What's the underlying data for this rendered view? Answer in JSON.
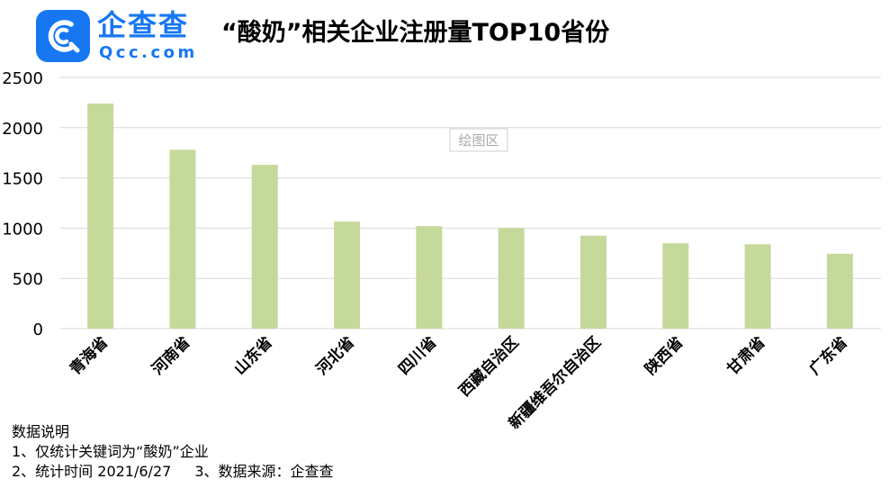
{
  "brand": {
    "name_cn": "企查查",
    "name_en": "Qcc.com"
  },
  "chart_data": {
    "type": "bar",
    "title": "“酸奶”相关企业注册量TOP10省份",
    "categories": [
      "青海省",
      "河南省",
      "山东省",
      "河北省",
      "四川省",
      "西藏自治区",
      "新疆维吾尔自治区",
      "陕西省",
      "甘肃省",
      "广东省"
    ],
    "values": [
      2240,
      1780,
      1630,
      1065,
      1020,
      1000,
      925,
      850,
      840,
      745
    ],
    "yticks": [
      0,
      500,
      1000,
      1500,
      2000,
      2500
    ],
    "ylim": [
      0,
      2500
    ],
    "grid": true,
    "bar_color": "#c5d99b",
    "plot_area_label": "绘图区"
  },
  "notes": {
    "heading": "数据说明",
    "line1": "1、仅统计关键词为“酸奶”企业",
    "line2a": "2、统计时间 2021/6/27",
    "line2b": "3、数据来源：企查查"
  }
}
